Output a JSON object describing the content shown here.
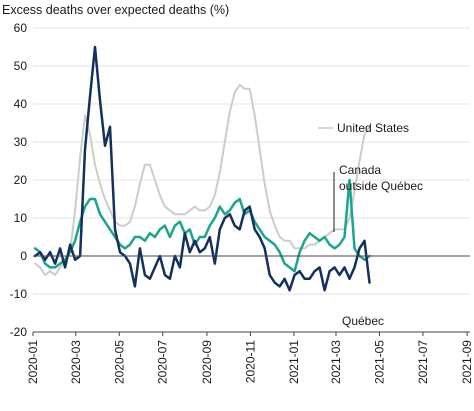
{
  "chart_data": {
    "type": "line",
    "title": "Excess deaths over expected deaths (%)",
    "xlabel": "",
    "ylabel": "",
    "ylim": [
      -20,
      60
    ],
    "yticks": [
      -20,
      -10,
      0,
      10,
      20,
      30,
      40,
      50,
      60
    ],
    "xticks": [
      "2020-01",
      "2020-03",
      "2020-05",
      "2020-07",
      "2020-09",
      "2020-11",
      "2021-01",
      "2021-03",
      "2021-05",
      "2021-07",
      "2021-09"
    ],
    "x_range": [
      "2020-01-01",
      "2021-09-05"
    ],
    "week_start": "2020-01-04",
    "week_step_days": 7,
    "grid": "horizontal",
    "annotations": [
      {
        "text": "United States",
        "series": "United States"
      },
      {
        "text": "Canada",
        "series": "Canada outside Québec"
      },
      {
        "text": "outside Québec",
        "series": "Canada outside Québec"
      },
      {
        "text": "Québec",
        "series": "Québec"
      }
    ],
    "series": [
      {
        "name": "United States",
        "color": "#cccccc",
        "values": [
          -2,
          -3,
          -5,
          -4,
          -5,
          -3,
          -1,
          1,
          12,
          26,
          37,
          32,
          24,
          19,
          15,
          12,
          9,
          8,
          8,
          9,
          13,
          19,
          24,
          24,
          20,
          16,
          13,
          12,
          11,
          11,
          11,
          12,
          13,
          12,
          12,
          13,
          16,
          22,
          30,
          38,
          43,
          45,
          44,
          44,
          37,
          28,
          19,
          12,
          8,
          5,
          4,
          4,
          2,
          2,
          2,
          3,
          3,
          4,
          5,
          6,
          7,
          7,
          7,
          10,
          17,
          25,
          32,
          34
        ]
      },
      {
        "name": "Canada outside Québec",
        "color": "#1aa58e",
        "values": [
          2,
          1,
          -2,
          -3,
          -3,
          -2,
          -1,
          1,
          4,
          9,
          13,
          15,
          15,
          11,
          9,
          7,
          5,
          3,
          2,
          3,
          5,
          5,
          4,
          6,
          5,
          7,
          8,
          5,
          8,
          9,
          6,
          7,
          3,
          5,
          5,
          8,
          10,
          13,
          11,
          12,
          14,
          15,
          11,
          12,
          9,
          7,
          5,
          4,
          3,
          1,
          -2,
          -3,
          -4,
          1,
          4,
          6,
          5,
          4,
          5,
          3,
          2,
          3,
          5,
          20,
          2,
          0,
          -1,
          0
        ]
      },
      {
        "name": "Québec",
        "color": "#14305f",
        "values": [
          0,
          1,
          -1,
          1,
          -2,
          2,
          -3,
          3,
          -1,
          0,
          28,
          42,
          55,
          41,
          29,
          34,
          7,
          1,
          0,
          -2,
          -8,
          2,
          -5,
          -6,
          -3,
          0,
          -5,
          -6,
          0,
          -3,
          6,
          1,
          4,
          1,
          2,
          5,
          -2,
          7,
          10,
          11,
          8,
          7,
          12,
          13,
          7,
          5,
          2,
          -5,
          -7,
          -8,
          -6,
          -9,
          -5,
          -4,
          -6,
          -6,
          -4,
          -3,
          -9,
          -4,
          -3,
          -5,
          -3,
          -6,
          -3,
          2,
          4,
          -7
        ]
      }
    ]
  }
}
